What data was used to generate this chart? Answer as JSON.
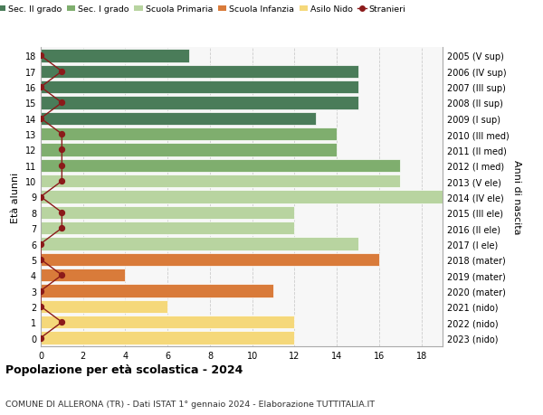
{
  "ages": [
    18,
    17,
    16,
    15,
    14,
    13,
    12,
    11,
    10,
    9,
    8,
    7,
    6,
    5,
    4,
    3,
    2,
    1,
    0
  ],
  "years": [
    "2005 (V sup)",
    "2006 (IV sup)",
    "2007 (III sup)",
    "2008 (II sup)",
    "2009 (I sup)",
    "2010 (III med)",
    "2011 (II med)",
    "2012 (I med)",
    "2013 (V ele)",
    "2014 (IV ele)",
    "2015 (III ele)",
    "2016 (II ele)",
    "2017 (I ele)",
    "2018 (mater)",
    "2019 (mater)",
    "2020 (mater)",
    "2021 (nido)",
    "2022 (nido)",
    "2023 (nido)"
  ],
  "bar_values": [
    7,
    15,
    15,
    15,
    13,
    14,
    14,
    17,
    17,
    19,
    12,
    12,
    15,
    16,
    4,
    11,
    6,
    12,
    12
  ],
  "bar_colors": [
    "#4a7c59",
    "#4a7c59",
    "#4a7c59",
    "#4a7c59",
    "#4a7c59",
    "#7fae6e",
    "#7fae6e",
    "#7fae6e",
    "#b8d4a0",
    "#b8d4a0",
    "#b8d4a0",
    "#b8d4a0",
    "#b8d4a0",
    "#d97b3a",
    "#d97b3a",
    "#d97b3a",
    "#f5d87a",
    "#f5d87a",
    "#f5d87a"
  ],
  "stranieri_values": [
    0,
    1,
    0,
    1,
    0,
    1,
    1,
    1,
    1,
    0,
    1,
    1,
    0,
    0,
    1,
    0,
    0,
    1,
    0
  ],
  "legend_labels": [
    "Sec. II grado",
    "Sec. I grado",
    "Scuola Primaria",
    "Scuola Infanzia",
    "Asilo Nido",
    "Stranieri"
  ],
  "legend_colors": [
    "#4a7c59",
    "#7fae6e",
    "#b8d4a0",
    "#d97b3a",
    "#f5d87a",
    "#8b1a1a"
  ],
  "ylabel": "Età alunni",
  "right_label": "Anni di nascita",
  "title": "Popolazione per età scolastica - 2024",
  "subtitle": "COMUNE DI ALLERONA (TR) - Dati ISTAT 1° gennaio 2024 - Elaborazione TUTTITALIA.IT",
  "xlim": [
    0,
    19
  ],
  "xticks": [
    0,
    2,
    4,
    6,
    8,
    10,
    12,
    14,
    16,
    18
  ],
  "stranieri_color": "#8b1a1a",
  "grid_color": "#cccccc",
  "bg_color": "#f7f7f7"
}
